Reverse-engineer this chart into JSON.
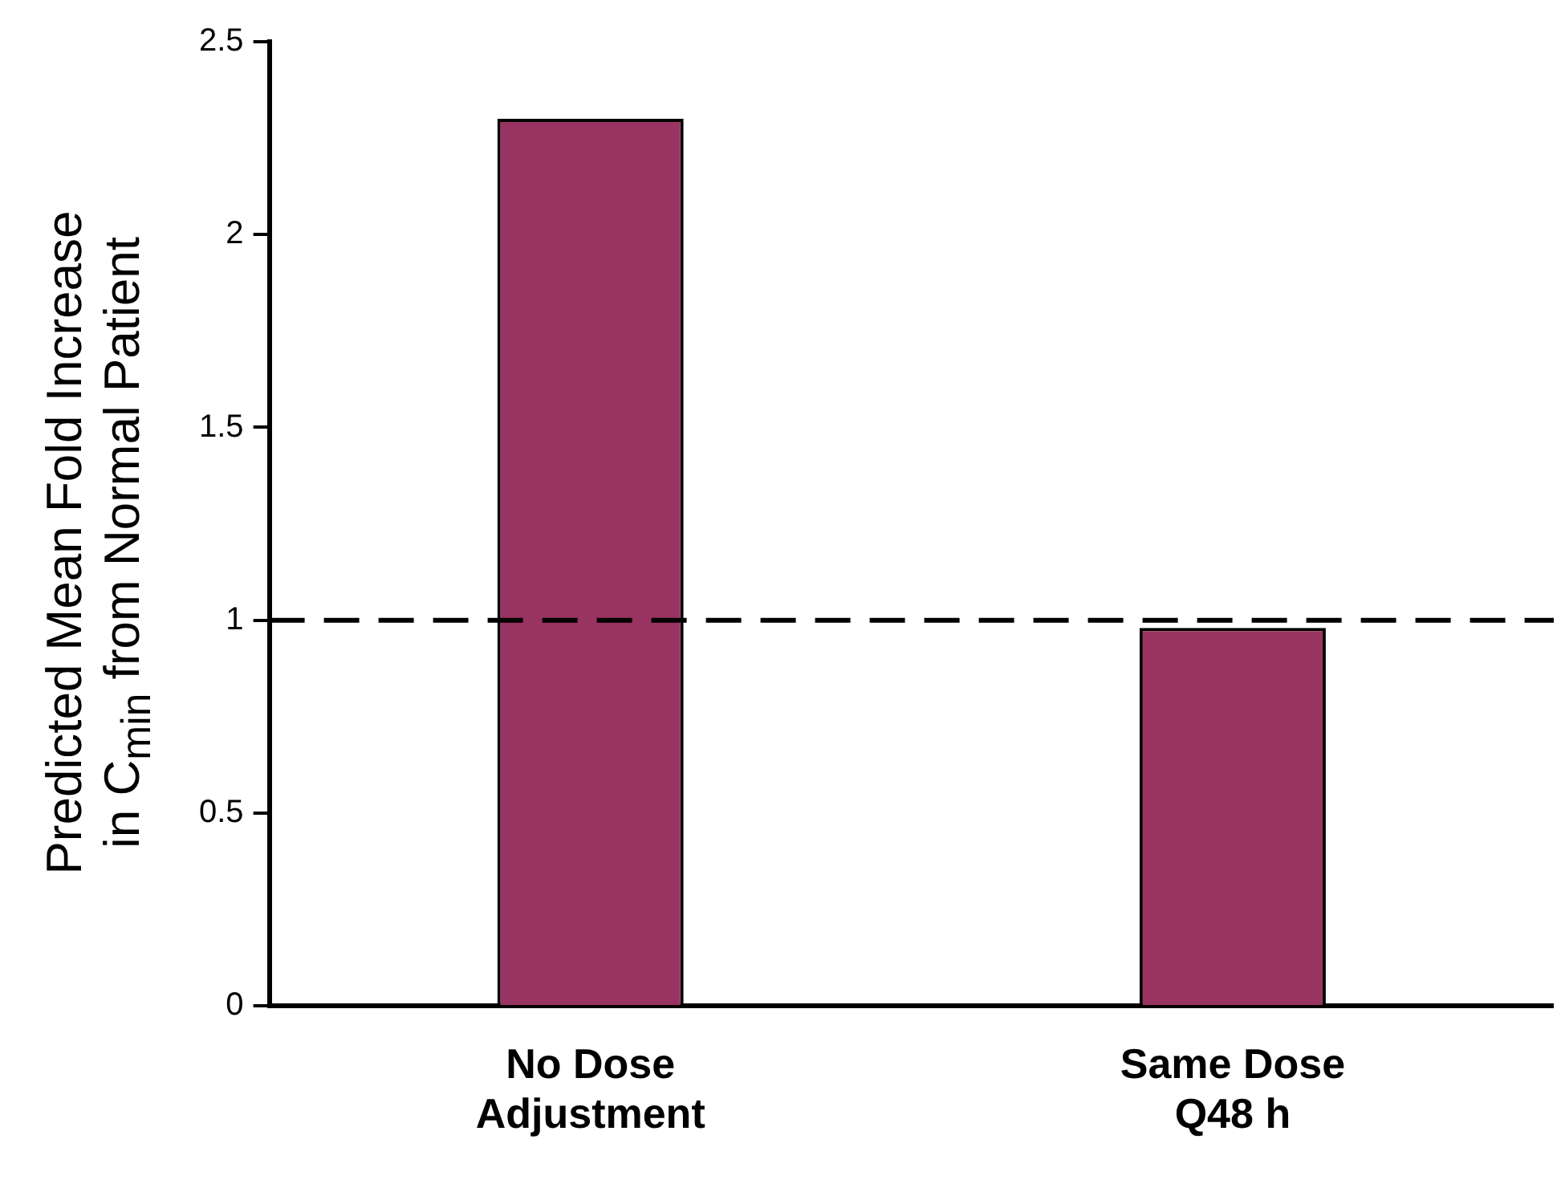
{
  "chart_data": {
    "type": "bar",
    "ylabel": "Predicted Mean Fold Increase in C$_{min}$ from Normal Patient",
    "categories": [
      "No Dose Adjustment",
      "Same Dose Q48 h"
    ],
    "values": [
      2.3,
      0.98
    ],
    "color": "#993362",
    "ylim": [
      0,
      2.5
    ],
    "yticks": [
      0,
      0.5,
      1,
      1.5,
      2,
      2.5
    ],
    "grid": false,
    "legend": false,
    "ref_lines": [
      {
        "axis": "y",
        "value": 1,
        "color": "#000000",
        "line_style": "dashed"
      }
    ]
  }
}
